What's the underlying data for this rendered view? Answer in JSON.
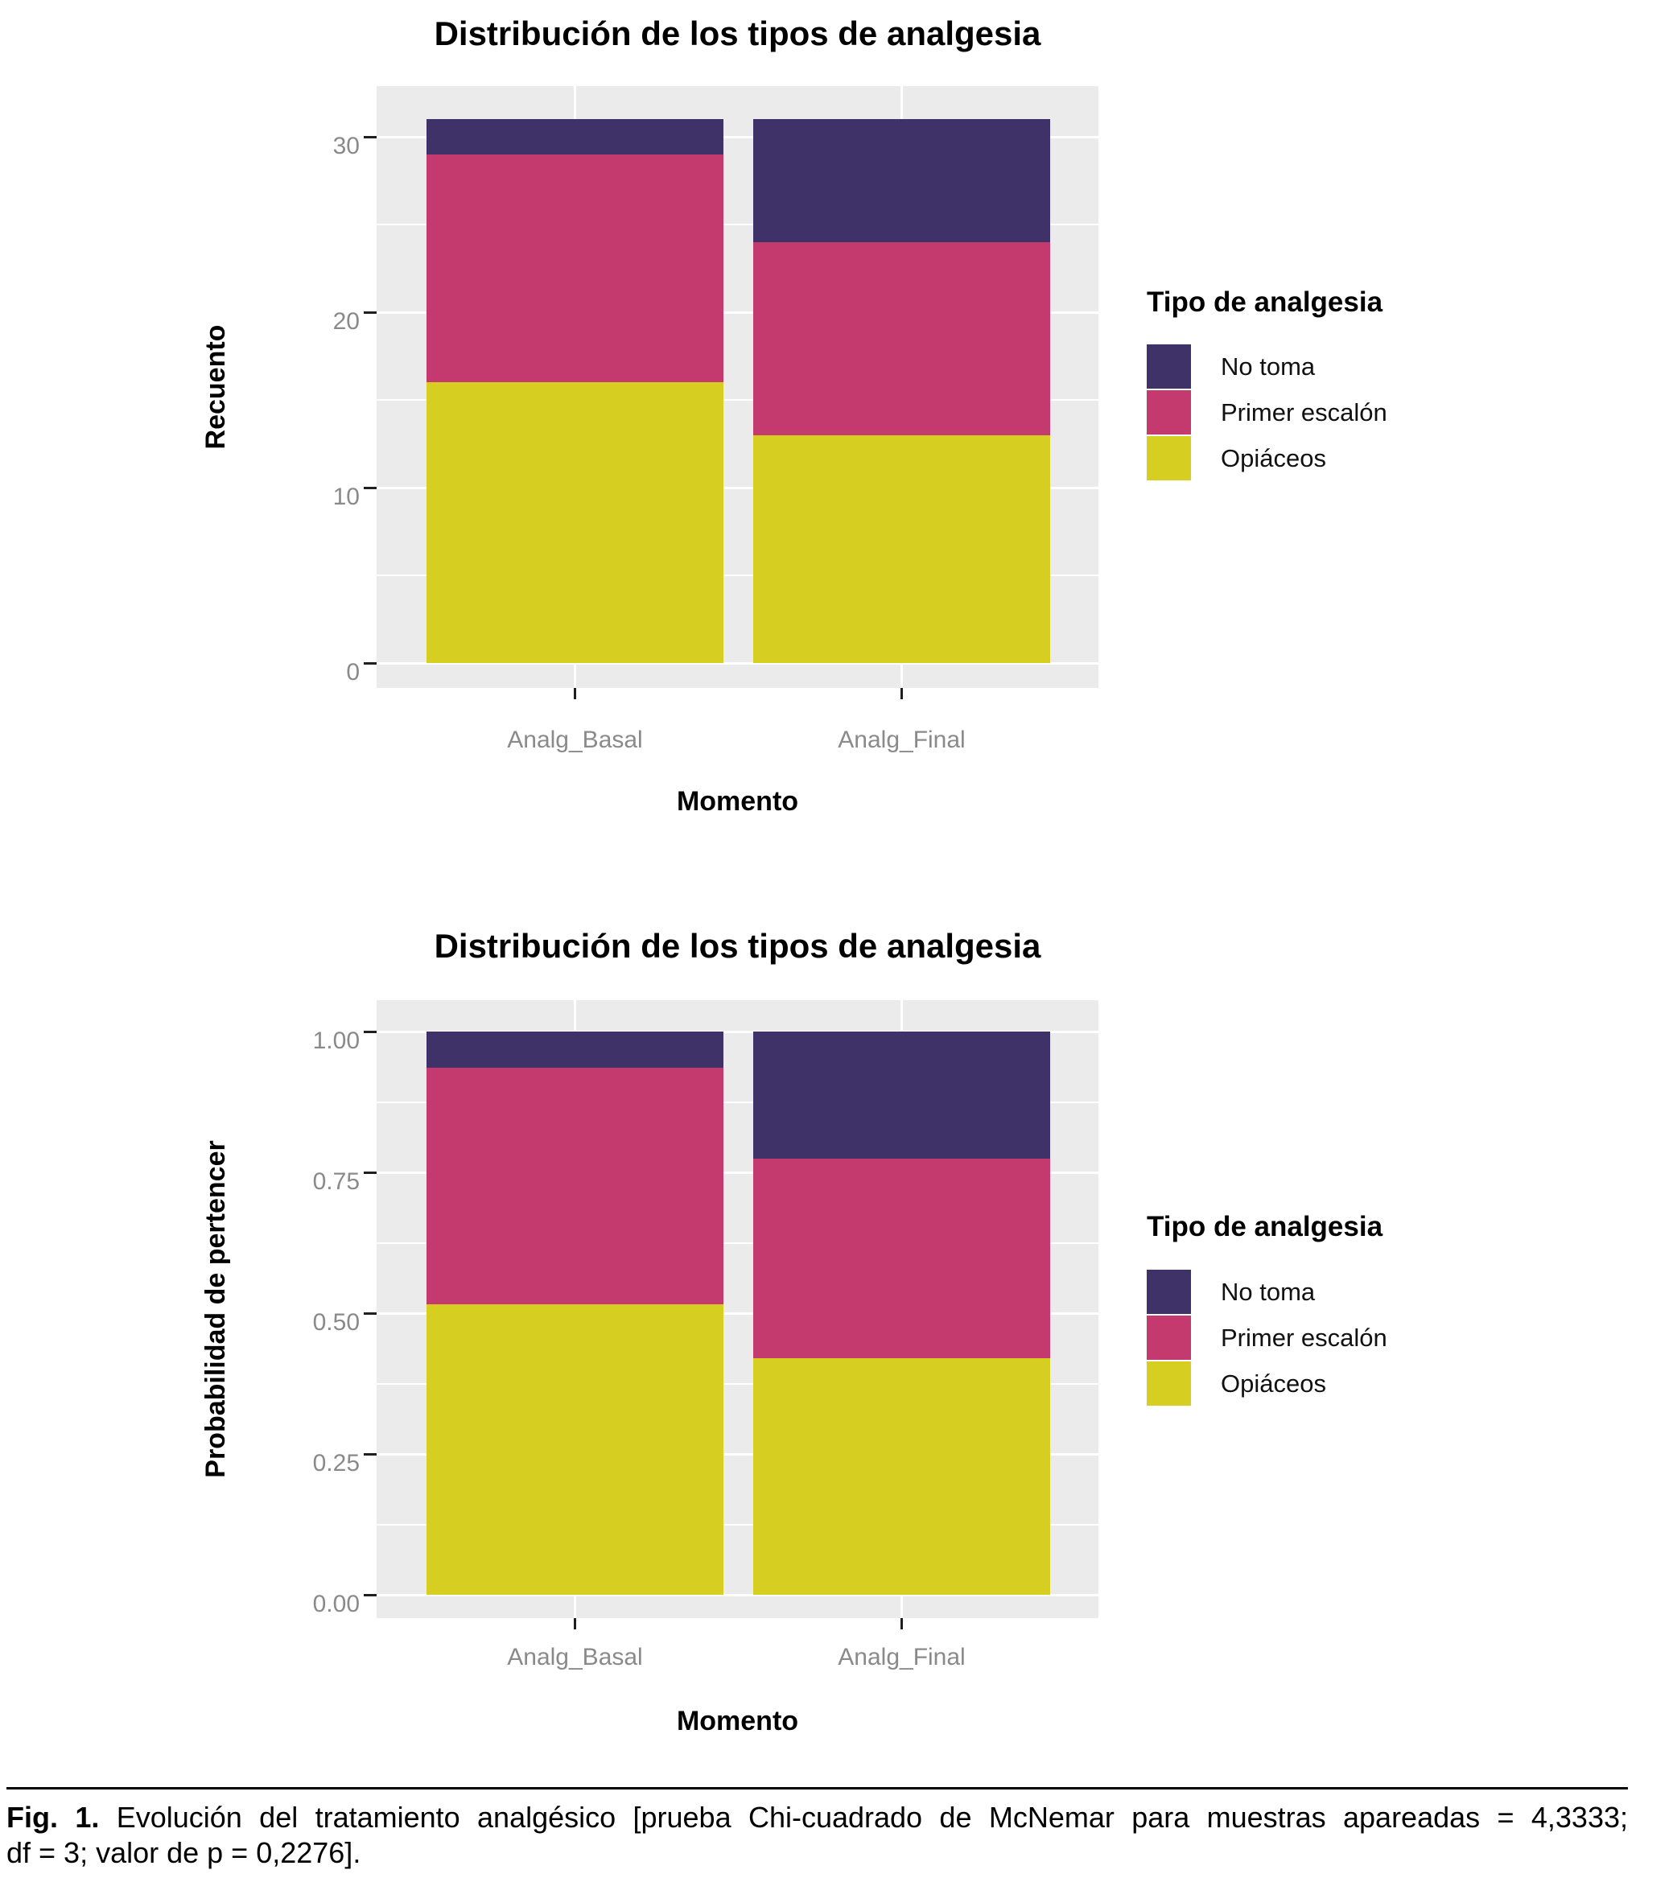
{
  "palette": {
    "no_toma": "#3F3268",
    "primer_escalon": "#C43A6E",
    "opiaceos": "#D6CE20",
    "panel_background": "#EBEBEB",
    "gridline": "#FFFFFF",
    "axis_text": "#8A8A8A",
    "tick_mark": "#1F1F1F",
    "title_text": "#000000"
  },
  "chart_data": [
    {
      "type": "bar",
      "stacked": true,
      "title": "Distribución de los tipos de analgesia",
      "xlabel": "Momento",
      "ylabel": "Recuento",
      "categories": [
        "Analg_Basal",
        "Analg_Final"
      ],
      "series": [
        {
          "name": "Opiáceos",
          "values": [
            16,
            13
          ],
          "color": "#D6CE20"
        },
        {
          "name": "Primer escalón",
          "values": [
            13,
            11
          ],
          "color": "#C43A6E"
        },
        {
          "name": "No toma",
          "values": [
            2,
            7
          ],
          "color": "#3F3268"
        }
      ],
      "totals": [
        31,
        31
      ],
      "ylim": [
        0,
        31
      ],
      "yticks": [
        0,
        10,
        20,
        30
      ],
      "ytick_labels": [
        "0",
        "10",
        "20",
        "30"
      ],
      "grid": true,
      "legend_title": "Tipo de analgesia",
      "legend_position": "right",
      "legend_order": [
        "No toma",
        "Primer escalón",
        "Opiáceos"
      ]
    },
    {
      "type": "bar",
      "stacked": true,
      "normalized": true,
      "title": "Distribución de los tipos de analgesia",
      "xlabel": "Momento",
      "ylabel": "Probabilidad de pertencer",
      "categories": [
        "Analg_Basal",
        "Analg_Final"
      ],
      "series": [
        {
          "name": "Opiáceos",
          "values": [
            0.5161,
            0.4194
          ],
          "color": "#D6CE20"
        },
        {
          "name": "Primer escalón",
          "values": [
            0.4194,
            0.3548
          ],
          "color": "#C43A6E"
        },
        {
          "name": "No toma",
          "values": [
            0.0645,
            0.2258
          ],
          "color": "#3F3268"
        }
      ],
      "ylim": [
        0,
        1
      ],
      "yticks": [
        0,
        0.25,
        0.5,
        0.75,
        1
      ],
      "ytick_labels": [
        "0.00",
        "0.25",
        "0.50",
        "0.75",
        "1.00"
      ],
      "grid": true,
      "legend_title": "Tipo de analgesia",
      "legend_position": "right",
      "legend_order": [
        "No toma",
        "Primer escalón",
        "Opiáceos"
      ]
    }
  ],
  "caption": {
    "fig_label": "Fig. 1.",
    "line1": "Evolución del tratamiento analgésico [prueba Chi-cuadrado de McNemar para muestras apareadas = 4,3333;",
    "line2": "df = 3; valor de p = 0,2276]."
  }
}
